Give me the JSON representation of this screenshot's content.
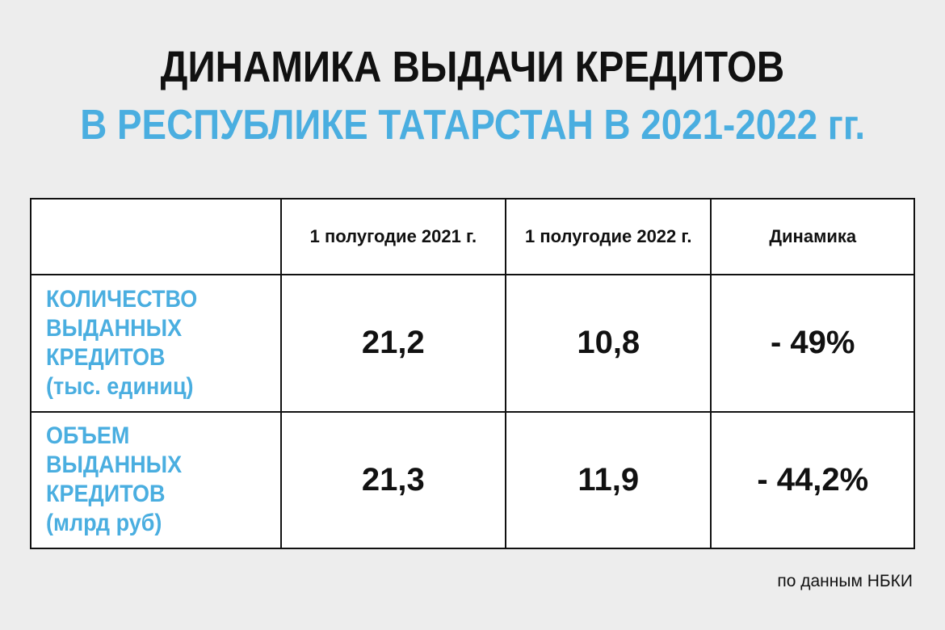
{
  "title": {
    "line1": "ДИНАМИКА ВЫДАЧИ КРЕДИТОВ",
    "line2": "В РЕСПУБЛИКЕ ТАТАРСТАН В 2021-2022 гг."
  },
  "table": {
    "columns": [
      "1 полугодие 2021 г.",
      "1 полугодие 2022 г.",
      "Динамика"
    ],
    "rows": [
      {
        "label": [
          "КОЛИЧЕСТВО",
          "ВЫДАННЫХ",
          "КРЕДИТОВ",
          "(тыс. единиц)"
        ],
        "cells": [
          "21,2",
          "10,8",
          "- 49%"
        ]
      },
      {
        "label": [
          "ОБЪЕМ",
          "ВЫДАННЫХ",
          "КРЕДИТОВ",
          "(млрд руб)"
        ],
        "cells": [
          "21,3",
          "11,9",
          "- 44,2%"
        ]
      }
    ]
  },
  "source": "по данным НБКИ"
}
